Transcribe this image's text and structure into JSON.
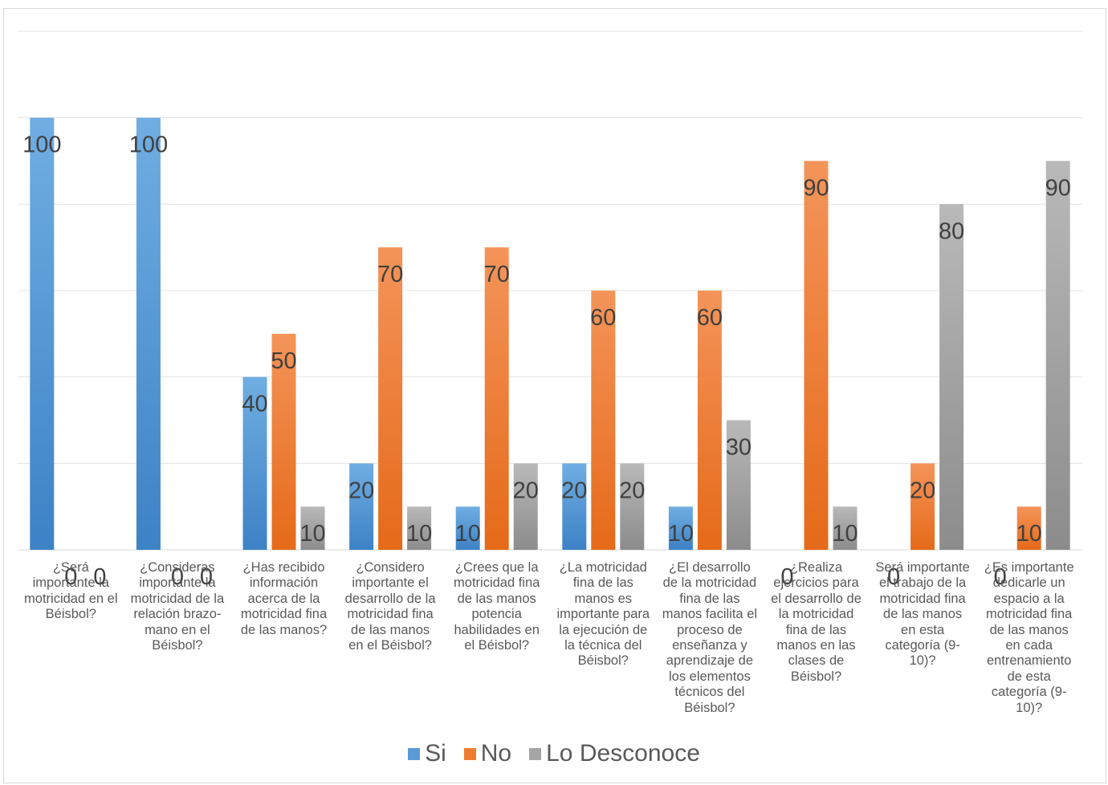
{
  "chart_data": {
    "type": "bar",
    "title": "",
    "xlabel": "",
    "ylabel": "",
    "ylim": [
      0,
      100
    ],
    "grid": true,
    "legend_position": "bottom",
    "categories": [
      "¿Será importante la motricidad en el Béisbol?",
      "¿Consideras importante la motricidad de la relación brazo-mano en el Béisbol?",
      "¿Has recibido información acerca de la motricidad fina de las manos?",
      "¿Considero importante el desarrollo de la motricidad fina de las manos en el Béisbol?",
      "¿Crees que la motricidad fina de las manos potencia habilidades en el Béisbol?",
      "¿La motricidad fina de las manos es importante para la ejecución de la técnica del Béisbol?",
      "¿El desarrollo de la motricidad fina de las manos facilita el proceso de enseñanza y aprendizaje de los elementos técnicos del Béisbol?",
      "¿Realiza ejercicios para el desarrollo de la motricidad fina de las manos en las clases de Béisbol?",
      "Será importante el trabajo de la motricidad fina de las manos en esta categoría (9-10)?",
      "¿Es importante dedicarle un espacio a la motricidad fina de las manos en cada entrenamiento de esta categoría (9-10)?"
    ],
    "category_lines": [
      [
        "¿Será",
        "importante la",
        "motricidad en el",
        "Béisbol?"
      ],
      [
        "¿Consideras",
        "importante la",
        "motricidad de la",
        "relación brazo-",
        "mano en el",
        "Béisbol?"
      ],
      [
        "¿Has recibido",
        "información",
        "acerca de la",
        "motricidad fina",
        "de las manos?"
      ],
      [
        "¿Considero",
        "importante el",
        "desarrollo de la",
        "motricidad fina",
        "de las manos",
        "en el Béisbol?"
      ],
      [
        "¿Crees que la",
        "motricidad fina",
        "de las manos",
        "potencia",
        "habilidades en",
        "el Béisbol?"
      ],
      [
        "¿La motricidad",
        "fina de las",
        "manos es",
        "importante para",
        "la ejecución de",
        "la técnica del",
        "Béisbol?"
      ],
      [
        "¿El desarrollo",
        "de la motricidad",
        "fina de las",
        "manos facilita el",
        "proceso de",
        "enseñanza y",
        "aprendizaje de",
        "los elementos",
        "técnicos del",
        "Béisbol?"
      ],
      [
        "¿Realiza",
        "ejercicios para",
        "el desarrollo de",
        "la motricidad",
        "fina de las",
        "manos en las",
        "clases de",
        "Béisbol?"
      ],
      [
        "Será importante",
        "el trabajo de la",
        "motricidad fina",
        "de las manos",
        "en esta",
        "categoría (9-",
        "10)?"
      ],
      [
        "¿Es importante",
        "dedicarle un",
        "espacio a la",
        "motricidad fina",
        "de las manos",
        "en cada",
        "entrenamiento",
        "de esta",
        "categoría (9-",
        "10)?"
      ]
    ],
    "series": [
      {
        "name": "Si",
        "color": "#5b9bd5",
        "values": [
          100,
          100,
          40,
          20,
          10,
          20,
          10,
          0,
          0,
          0
        ]
      },
      {
        "name": "No",
        "color": "#ed7d31",
        "values": [
          0,
          0,
          50,
          70,
          70,
          60,
          60,
          90,
          20,
          10
        ]
      },
      {
        "name": "Lo Desconoce",
        "color": "#a5a5a5",
        "values": [
          0,
          0,
          10,
          10,
          20,
          20,
          30,
          10,
          80,
          90
        ]
      }
    ]
  }
}
